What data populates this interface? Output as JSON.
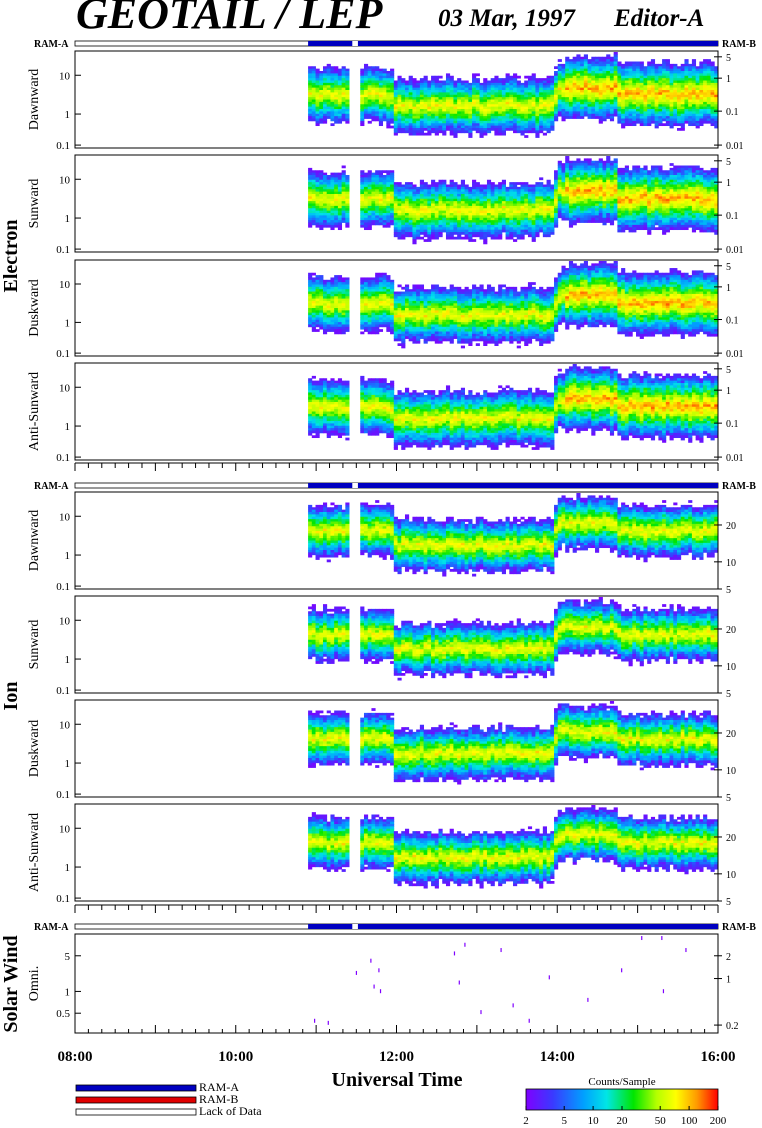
{
  "header": {
    "title": "GEOTAIL / LEP",
    "date": "03 Mar, 1997",
    "editor": "Editor-A"
  },
  "colors": {
    "ram_a": "#0000c0",
    "ram_b": "#e00000",
    "lack_of_data": "#ffffff",
    "colormap": [
      "#7f00ff",
      "#3a3aff",
      "#00a0ff",
      "#00e6e6",
      "#00e600",
      "#b4ff00",
      "#ffff00",
      "#ff9a00",
      "#ff0000"
    ]
  },
  "sections": [
    {
      "label": "Electron"
    },
    {
      "label": "Ion"
    },
    {
      "label": "Solar Wind"
    }
  ],
  "ram_labels": {
    "left": "RAM-A",
    "right": "RAM-B"
  },
  "chart_data": {
    "type": "heatmap",
    "xlabel": "Universal Time",
    "xticks": [
      "08:00",
      "10:00",
      "12:00",
      "14:00",
      "16:00"
    ],
    "xlim_hours": [
      8,
      16
    ],
    "data_start_hour": 10.9,
    "data_gap_hours": [
      11.45,
      11.52
    ],
    "panels": [
      {
        "group": "Electron",
        "name": "Dawnward",
        "yticks_left": [
          "10",
          "1",
          "0.1"
        ],
        "yticks_right": [
          "5",
          "1",
          "0.1",
          "0.01"
        ],
        "ylim": [
          0.08,
          40
        ],
        "scale": "log"
      },
      {
        "group": "Electron",
        "name": "Sunward",
        "yticks_left": [
          "10",
          "1",
          "0.1"
        ],
        "yticks_right": [
          "5",
          "1",
          "0.1",
          "0.01"
        ],
        "ylim": [
          0.08,
          40
        ],
        "scale": "log"
      },
      {
        "group": "Electron",
        "name": "Duskward",
        "yticks_left": [
          "10",
          "1",
          "0.1"
        ],
        "yticks_right": [
          "5",
          "1",
          "0.1",
          "0.01"
        ],
        "ylim": [
          0.08,
          40
        ],
        "scale": "log"
      },
      {
        "group": "Electron",
        "name": "Anti-Sunward",
        "yticks_left": [
          "10",
          "1",
          "0.1"
        ],
        "yticks_right": [
          "5",
          "1",
          "0.1",
          "0.01"
        ],
        "ylim": [
          0.08,
          40
        ],
        "scale": "log"
      },
      {
        "group": "Ion",
        "name": "Dawnward",
        "yticks_left": [
          "10",
          "1",
          "0.1"
        ],
        "yticks_right": [
          "20",
          "10",
          "5"
        ],
        "ylim": [
          0.08,
          40
        ],
        "scale": "log"
      },
      {
        "group": "Ion",
        "name": "Sunward",
        "yticks_left": [
          "10",
          "1",
          "0.1"
        ],
        "yticks_right": [
          "20",
          "10",
          "5"
        ],
        "ylim": [
          0.08,
          40
        ],
        "scale": "log"
      },
      {
        "group": "Ion",
        "name": "Duskward",
        "yticks_left": [
          "10",
          "1",
          "0.1"
        ],
        "yticks_right": [
          "20",
          "10",
          "5"
        ],
        "ylim": [
          0.08,
          40
        ],
        "scale": "log"
      },
      {
        "group": "Ion",
        "name": "Anti-Sunward",
        "yticks_left": [
          "10",
          "1",
          "0.1"
        ],
        "yticks_right": [
          "20",
          "10",
          "5"
        ],
        "ylim": [
          0.08,
          40
        ],
        "scale": "log"
      },
      {
        "group": "Solar Wind",
        "name": "Omni.",
        "yticks_left": [
          "5",
          "1",
          "0.5"
        ],
        "yticks_right": [
          "2",
          "1",
          "0.2"
        ],
        "ylim": [
          0.3,
          8
        ],
        "scale": "log"
      }
    ],
    "solar_wind_points": [
      {
        "t": 10.98,
        "y": 0.45
      },
      {
        "t": 11.15,
        "y": 0.42
      },
      {
        "t": 11.5,
        "y": 2.2
      },
      {
        "t": 11.68,
        "y": 3.3
      },
      {
        "t": 11.72,
        "y": 1.4
      },
      {
        "t": 11.78,
        "y": 2.4
      },
      {
        "t": 11.8,
        "y": 1.2
      },
      {
        "t": 12.72,
        "y": 4.2
      },
      {
        "t": 12.78,
        "y": 1.6
      },
      {
        "t": 12.85,
        "y": 5.6
      },
      {
        "t": 13.05,
        "y": 0.6
      },
      {
        "t": 13.3,
        "y": 4.7
      },
      {
        "t": 13.45,
        "y": 0.75
      },
      {
        "t": 13.65,
        "y": 0.45
      },
      {
        "t": 13.9,
        "y": 1.9
      },
      {
        "t": 14.38,
        "y": 0.9
      },
      {
        "t": 14.8,
        "y": 2.4
      },
      {
        "t": 15.05,
        "y": 7.0
      },
      {
        "t": 15.3,
        "y": 7.0
      },
      {
        "t": 15.32,
        "y": 1.2
      },
      {
        "t": 15.6,
        "y": 4.7
      }
    ],
    "colorbar": {
      "title": "Counts/Sample",
      "ticks": [
        "2",
        "5",
        "10",
        "20",
        "50",
        "100",
        "200"
      ],
      "range": [
        2,
        200
      ],
      "scale": "log"
    },
    "legend": [
      {
        "label": "RAM-A",
        "color": "#0000c0"
      },
      {
        "label": "RAM-B",
        "color": "#e00000"
      },
      {
        "label": "Lack of Data",
        "color": "#ffffff"
      }
    ]
  }
}
